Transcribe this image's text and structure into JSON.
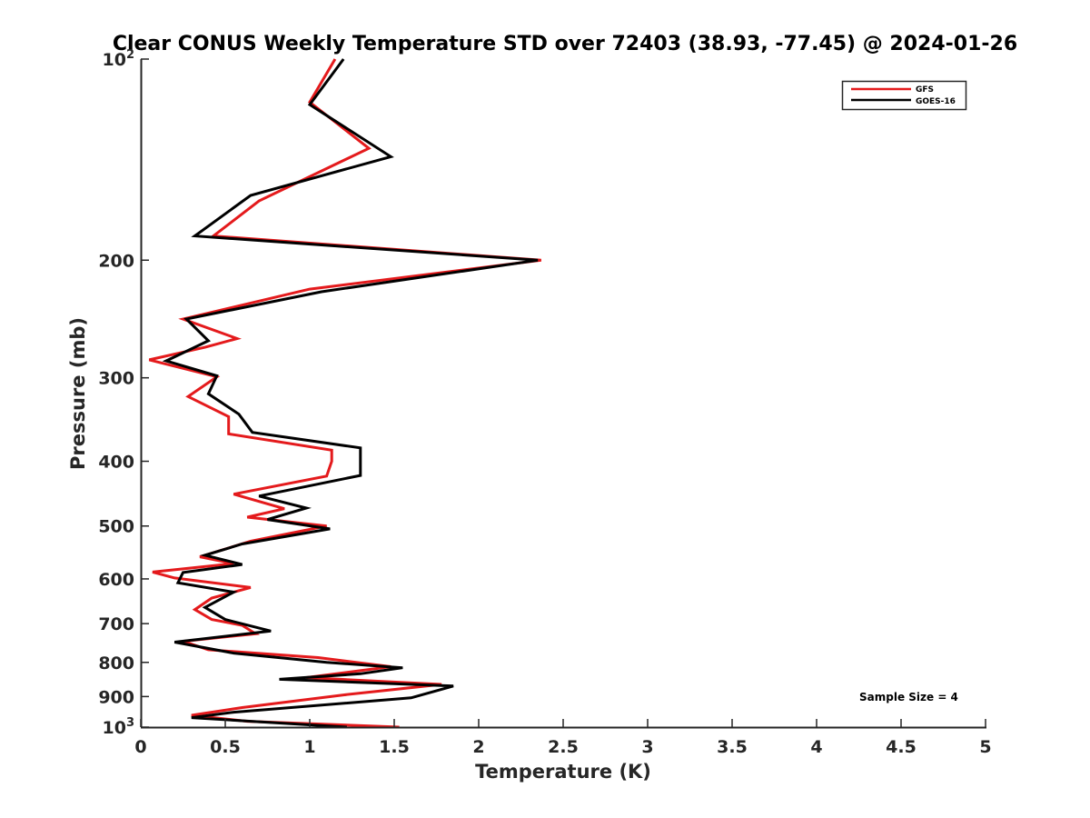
{
  "chart_data": {
    "type": "line",
    "title": "Clear CONUS Weekly Temperature STD over 72403 (38.93, -77.45) @ 2024-01-26",
    "xlabel": "Temperature (K)",
    "ylabel": "Pressure (mb)",
    "xlim": [
      0,
      5
    ],
    "ylim": [
      100,
      1000
    ],
    "y_scale": "log",
    "y_reversed": true,
    "grid": false,
    "legend_position": "top-right",
    "x_ticks": [
      {
        "value": 0,
        "label": "0"
      },
      {
        "value": 0.5,
        "label": "0.5"
      },
      {
        "value": 1,
        "label": "1"
      },
      {
        "value": 1.5,
        "label": "1.5"
      },
      {
        "value": 2,
        "label": "2"
      },
      {
        "value": 2.5,
        "label": "2.5"
      },
      {
        "value": 3,
        "label": "3"
      },
      {
        "value": 3.5,
        "label": "3.5"
      },
      {
        "value": 4,
        "label": "4"
      },
      {
        "value": 4.5,
        "label": "4.5"
      },
      {
        "value": 5,
        "label": "5"
      }
    ],
    "y_ticks": [
      {
        "value": 100,
        "base": "10",
        "exp": "2"
      },
      {
        "value": 200,
        "base": "200",
        "exp": ""
      },
      {
        "value": 300,
        "base": "300",
        "exp": ""
      },
      {
        "value": 400,
        "base": "400",
        "exp": ""
      },
      {
        "value": 500,
        "base": "500",
        "exp": ""
      },
      {
        "value": 600,
        "base": "600",
        "exp": ""
      },
      {
        "value": 700,
        "base": "700",
        "exp": ""
      },
      {
        "value": 800,
        "base": "800",
        "exp": ""
      },
      {
        "value": 900,
        "base": "900",
        "exp": ""
      },
      {
        "value": 1000,
        "base": "10",
        "exp": "3"
      }
    ],
    "series": [
      {
        "name": "GFS",
        "color": "#e41a1c",
        "points": [
          [
            1.15,
            100
          ],
          [
            1.0,
            116
          ],
          [
            1.35,
            136
          ],
          [
            0.7,
            163
          ],
          [
            0.43,
            184
          ],
          [
            2.37,
            200
          ],
          [
            1.0,
            221
          ],
          [
            0.25,
            245
          ],
          [
            0.57,
            262
          ],
          [
            0.38,
            270
          ],
          [
            0.05,
            282
          ],
          [
            0.45,
            299
          ],
          [
            0.28,
            320
          ],
          [
            0.52,
            343
          ],
          [
            0.52,
            364
          ],
          [
            1.13,
            385
          ],
          [
            1.13,
            400
          ],
          [
            1.1,
            421
          ],
          [
            0.55,
            448
          ],
          [
            0.85,
            471
          ],
          [
            0.63,
            485
          ],
          [
            1.1,
            500
          ],
          [
            0.65,
            527
          ],
          [
            0.35,
            556
          ],
          [
            0.55,
            569
          ],
          [
            0.07,
            586
          ],
          [
            0.2,
            598
          ],
          [
            0.65,
            618
          ],
          [
            0.42,
            641
          ],
          [
            0.32,
            667
          ],
          [
            0.42,
            690
          ],
          [
            0.6,
            704
          ],
          [
            0.68,
            725
          ],
          [
            0.25,
            744
          ],
          [
            0.4,
            766
          ],
          [
            1.05,
            787
          ],
          [
            1.48,
            812
          ],
          [
            0.98,
            843
          ],
          [
            1.78,
            863
          ],
          [
            1.2,
            895
          ],
          [
            0.6,
            935
          ],
          [
            0.3,
            960
          ],
          [
            0.63,
            980
          ],
          [
            1.53,
            1000
          ]
        ]
      },
      {
        "name": "GOES-16",
        "color": "#000000",
        "points": [
          [
            1.2,
            100
          ],
          [
            1.0,
            117
          ],
          [
            1.48,
            140
          ],
          [
            0.65,
            160
          ],
          [
            0.32,
            184
          ],
          [
            2.35,
            200
          ],
          [
            1.07,
            223
          ],
          [
            0.27,
            245
          ],
          [
            0.4,
            264
          ],
          [
            0.15,
            283
          ],
          [
            0.45,
            298
          ],
          [
            0.4,
            317
          ],
          [
            0.58,
            340
          ],
          [
            0.66,
            362
          ],
          [
            1.3,
            382
          ],
          [
            1.3,
            420
          ],
          [
            0.7,
            451
          ],
          [
            0.98,
            470
          ],
          [
            0.75,
            489
          ],
          [
            1.12,
            505
          ],
          [
            0.6,
            532
          ],
          [
            0.38,
            553
          ],
          [
            0.6,
            571
          ],
          [
            0.25,
            587
          ],
          [
            0.22,
            608
          ],
          [
            0.55,
            628
          ],
          [
            0.38,
            662
          ],
          [
            0.5,
            690
          ],
          [
            0.77,
            718
          ],
          [
            0.2,
            746
          ],
          [
            0.55,
            775
          ],
          [
            1.1,
            800
          ],
          [
            1.55,
            815
          ],
          [
            1.3,
            832
          ],
          [
            0.82,
            848
          ],
          [
            1.85,
            868
          ],
          [
            1.6,
            904
          ],
          [
            0.55,
            950
          ],
          [
            0.3,
            968
          ],
          [
            1.22,
            1000
          ]
        ]
      }
    ],
    "annotation": "Sample Size = 4"
  }
}
